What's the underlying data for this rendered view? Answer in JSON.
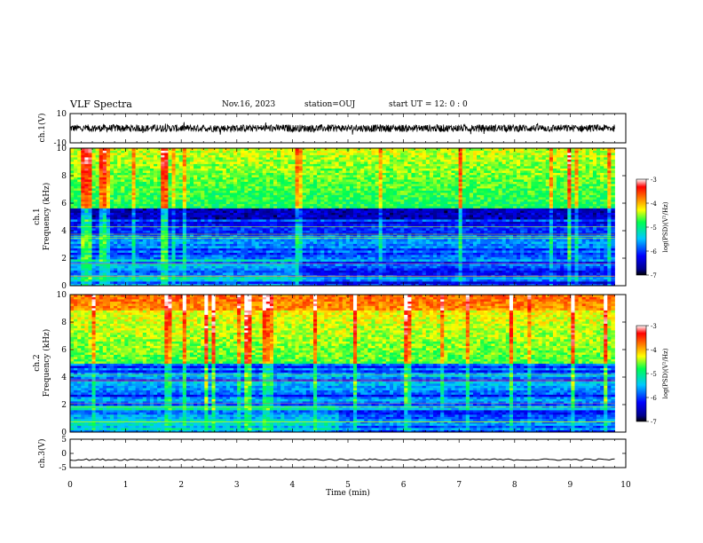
{
  "header": {
    "title": "VLF Spectra",
    "date": "Nov.16, 2023",
    "station": "station=OUJ",
    "start": "start  UT  =   12: 0  : 0"
  },
  "chart_data": [
    {
      "type": "line",
      "panel": "ch1-waveform",
      "ylabel": "ch.1(V)",
      "ylim": [
        -10,
        10
      ],
      "yticks": [
        -10,
        10
      ],
      "xlim": [
        0,
        10
      ],
      "signal": {
        "center": 0,
        "amplitude": 2.5,
        "spike_amplitude": 4.5,
        "end_time": 9.8
      }
    },
    {
      "type": "heatmap",
      "panel": "ch1-spectrogram",
      "ylabel": "ch.1\nFrequency (kHz)",
      "ylabel_line1": "ch.1",
      "ylabel_line2": "Frequency (kHz)",
      "ylim": [
        0,
        10
      ],
      "yticks": [
        0,
        2,
        4,
        6,
        8,
        10
      ],
      "xlim": [
        0,
        10
      ],
      "data_end_time": 9.8,
      "colorbar": {
        "label": "log(PSD)(V²/Hz)",
        "range": [
          -7,
          -3
        ],
        "ticks": [
          -7,
          -6,
          -5,
          -4,
          -3
        ]
      },
      "features": {
        "high_band_khz": [
          5,
          10
        ],
        "low_band_khz": [
          0,
          5
        ],
        "dark_gap_khz": [
          4.9,
          5.6
        ],
        "level_change_time_min": 4.1
      }
    },
    {
      "type": "heatmap",
      "panel": "ch2-spectrogram",
      "ylabel": "ch.2\nFrequency (kHz)",
      "ylabel_line1": "ch.2",
      "ylabel_line2": "Frequency (kHz)",
      "ylim": [
        0,
        10
      ],
      "yticks": [
        0,
        2,
        4,
        6,
        8,
        10
      ],
      "xlim": [
        0,
        10
      ],
      "data_end_time": 9.8,
      "colorbar": {
        "label": "log(PSD)(V²/Hz)",
        "range": [
          -7,
          -3
        ],
        "ticks": [
          -7,
          -6,
          -5,
          -4,
          -3
        ]
      },
      "features": {
        "high_band_khz": [
          5,
          10
        ],
        "low_band_khz": [
          0,
          5
        ],
        "level_change_time_min": 4.8
      }
    },
    {
      "type": "line",
      "panel": "ch3-waveform",
      "ylabel": "ch.3(V)",
      "ylim": [
        -5,
        5
      ],
      "yticks": [
        -5,
        0,
        5
      ],
      "xlim": [
        0,
        10
      ],
      "xlabel": "Time (min)",
      "xticks": [
        0,
        1,
        2,
        3,
        4,
        5,
        6,
        7,
        8,
        9,
        10
      ],
      "signal": {
        "center": -2.2,
        "amplitude": 0.3,
        "end_time": 9.8
      }
    }
  ],
  "colors": {
    "frame": "#000000",
    "background": "#ffffff"
  }
}
